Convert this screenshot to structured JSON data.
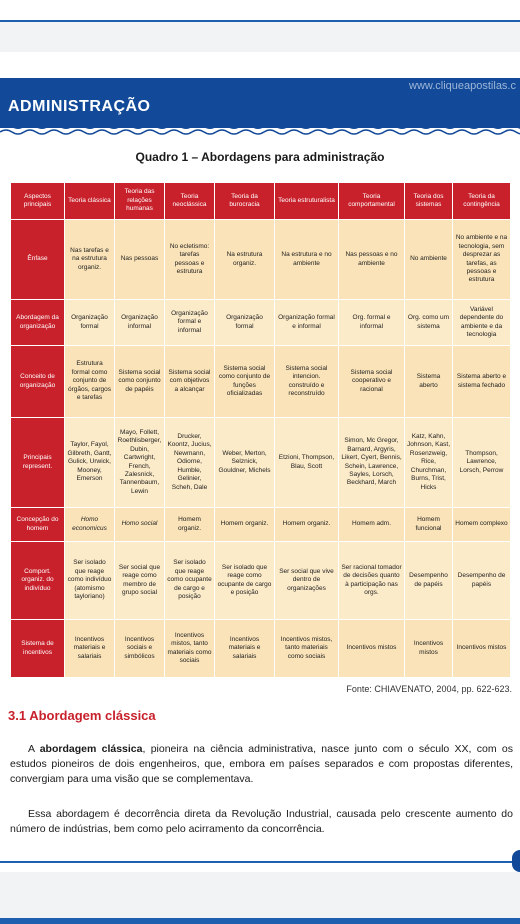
{
  "header": {
    "site_url": "www.cliqueapostilas.c",
    "section_label": "ADMINISTRAÇÃO"
  },
  "quadro_title": "Quadro 1 – Abordagens para administração",
  "table": {
    "columns": [
      "Aspectos principais",
      "Teoria clássica",
      "Teoria das relações humanas",
      "Teoria neoclássica",
      "Teoria da burocracia",
      "Teoria estruturalista",
      "Teoria comportamental",
      "Teoria dos sistemas",
      "Teoria da contingência"
    ],
    "rows": [
      {
        "aspect": "Ênfase",
        "cells": [
          "Nas tarefas e na estrutura organiz.",
          "Nas pessoas",
          "No ecletismo: tarefas pessoas e estrutura",
          "Na estrutura organiz.",
          "Na estrutura e no ambiente",
          "Nas pessoas e no ambiente",
          "No ambiente",
          "No ambiente e na tecnologia, sem desprezar as tarefas, as pessoas e estrutura"
        ]
      },
      {
        "aspect": "Abordagem da organização",
        "cells": [
          "Organização formal",
          "Organização informal",
          "Organização formal e informal",
          "Organização formal",
          "Organização formal e informal",
          "Org. formal e informal",
          "Org. como um sistema",
          "Variável dependente do ambiente e da tecnologia"
        ]
      },
      {
        "aspect": "Conceito de organização",
        "cells": [
          "Estrutura formal como conjunto de órgãos, cargos e tarefas",
          "Sistema social como conjunto de papéis",
          "Sistema social com objetivos a alcançar",
          "Sistema social como conjunto de funções oficializadas",
          "Sistema social intencion. construído e reconstruído",
          "Sistema social cooperativo e racional",
          "Sistema aberto",
          "Sistema aberto e sistema fechado"
        ]
      },
      {
        "aspect": "Principais represent.",
        "cells": [
          "Taylor, Fayol, Gilbreth, Gantt, Gulick, Urwick, Mooney, Emerson",
          "Mayo, Follett, Roethlisberger, Dubin, Cartwright, French, Zalesnick, Tannenbaum, Lewin",
          "Drucker, Koontz, Jucius, Newmann, Odiorne, Humble, Gelinier, Scheh, Dale",
          "Weber, Merton, Selznick, Gouldner, Michels",
          "Etzioni, Thompson, Blau, Scott",
          "Simon, Mc Gregor, Barnard, Argyris, Likert, Cyert, Bennis, Schein, Lawrence, Sayles, Lorsch, Beckhard, March",
          "Katz, Kahn, Johnson, Kast, Rosenzweig, Rice, Churchman, Burns, Trist, Hicks",
          "Thompson, Lawrence, Lorsch, Perrow"
        ]
      },
      {
        "aspect": "Concepção do homem",
        "cells": [
          "Homo economicus",
          "Homo social",
          "Homem organiz.",
          "Homem organiz.",
          "Homem organiz.",
          "Homem adm.",
          "Homem funcional",
          "Homem complexo"
        ]
      },
      {
        "aspect": "Comport. organiz. do indivíduo",
        "cells": [
          "Ser isolado que reage como indivíduo (atomismo tayloriano)",
          "Ser social que reage como membro de grupo social",
          "Ser isolado que reage como ocupante de cargo e posição",
          "Ser isolado que reage como ocupante de cargo e posição",
          "Ser social que vive dentro de organizações",
          "Ser racional tomador de decisões quanto à participação nas orgs.",
          "Desempenho de papéis",
          "Desempenho de papéis"
        ]
      },
      {
        "aspect": "Sistema de incentivos",
        "cells": [
          "Incentivos materiais e salariais",
          "Incentivos sociais e simbólicos",
          "Incentivos mistos, tanto materiais como sociais",
          "Incentivos materiais e salariais",
          "Incentivos mistos, tanto materiais como sociais",
          "Incentivos mistos",
          "Incentivos mistos",
          "Incentivos mistos"
        ]
      }
    ]
  },
  "fonte": "Fonte: CHIAVENATO, 2004, pp. 622-623.",
  "section_title": "3.1 Abordagem clássica",
  "paragraph1": {
    "lead": "A ",
    "bold": "abordagem clássica",
    "rest": ", pioneira na ciência administrativa, nasce junto com o século XX, com os estudos pioneiros de dois engenheiros, que, embora em países separados e com propostas diferentes, convergiam para uma visão que se complementava."
  },
  "paragraph2": "Essa abordagem é decorrência direta da Revolução Industrial, causada pelo crescente aumento do número de indústrias, bem como pelo acirramento da concorrência.",
  "colors": {
    "header_blue": "#124a99",
    "table_red": "#c8212b",
    "cell_beige": "#fae3b8",
    "section_red": "#c8212b"
  }
}
